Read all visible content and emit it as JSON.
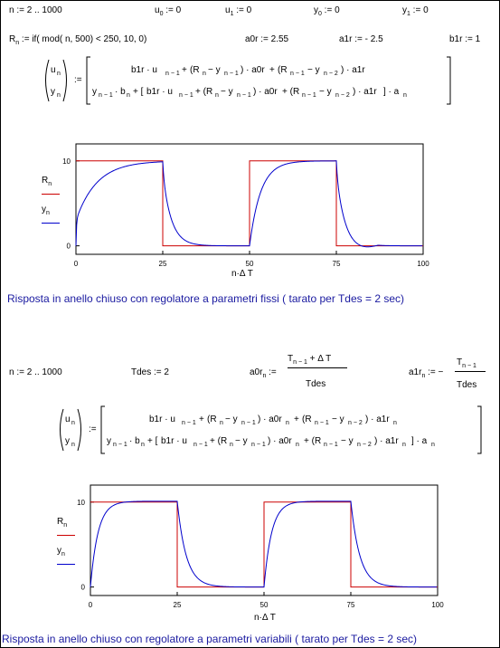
{
  "section1": {
    "defs": {
      "n_range": "n := 2 .. 1000",
      "u0_base": "u",
      "u0_sub": "0",
      "u0_rest": " := 0",
      "u1_base": "u",
      "u1_sub": "1",
      "u1_rest": " := 0",
      "y0_base": "y",
      "y0_sub": "0",
      "y0_rest": " := 0",
      "y1_base": "y",
      "y1_sub": "1",
      "y1_rest": " := 0",
      "R_base": "R",
      "R_sub": "n",
      "R_rest": " := if( mod( n, 500) < 250, 10, 0)",
      "a0r": "a0r := 2.55",
      "a1r": "a1r := - 2.5",
      "b1r": "b1r := 1"
    },
    "chart_data": {
      "type": "line",
      "x_range": [
        0,
        100
      ],
      "y_range": [
        -1,
        12
      ],
      "xticks": [
        "0",
        "25",
        "50",
        "75",
        "100"
      ],
      "yticks": [
        "10",
        "0"
      ],
      "xlabel": "n·Δ T",
      "series": [
        {
          "name": "R_n",
          "color": "#cc0000",
          "shape": "square wave: 10 for 0–25, 0 for 25–50, 10 for 50–75, 0 for 75–100"
        },
        {
          "name": "y_n",
          "color": "#0000cc",
          "shape": "closed-loop response tracking R_n"
        }
      ]
    },
    "caption": "Risposta in anello chiuso con regolatore a parametri fissi ( tarato per Tdes = 2 sec)"
  },
  "section2": {
    "defs": {
      "n_range": "n := 2 .. 1000",
      "tdes": "Tdes := 2",
      "a0r_label": "a0r",
      "a0r_sub": "n",
      "a0r_num": "T",
      "a0r_num_sub": "n − 1",
      "a0r_num_rest": " + Δ T",
      "a0r_den": "Tdes",
      "a1r_label": "a1r",
      "a1r_sub": "n",
      "a1r_prefix": ":= −",
      "a1r_num": "T",
      "a1r_num_sub": "n − 1",
      "a1r_den": "Tdes"
    },
    "chart_data": {
      "type": "line",
      "x_range": [
        0,
        100
      ],
      "y_range": [
        -1,
        12
      ],
      "xticks": [
        "0",
        "25",
        "50",
        "75",
        "100"
      ],
      "yticks": [
        "10",
        "0"
      ],
      "xlabel": "n·Δ T",
      "series": [
        {
          "name": "R_n",
          "color": "#cc0000"
        },
        {
          "name": "y_n",
          "color": "#0000cc"
        }
      ]
    },
    "caption": "Risposta in anello chiuso con regolatore a parametri variabili ( tarato per Tdes = 2 sec)"
  },
  "legend": {
    "R": "R",
    "y": "y",
    "sub": "n"
  }
}
